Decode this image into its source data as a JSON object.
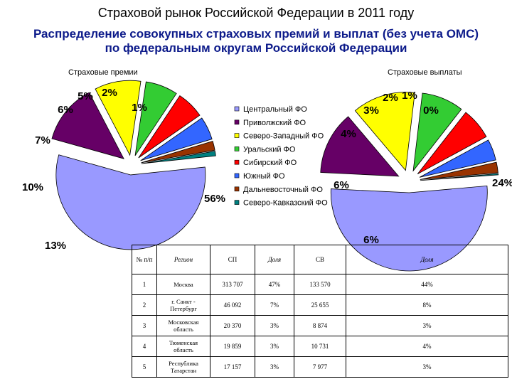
{
  "title": "Страховой рынок Российской Федерации в 2011 году",
  "subtitle_line1": "Распределение совокупных страховых премий и выплат (без учета ОМС)",
  "subtitle_line2": "по федеральным округам Российской Федерации",
  "chart_data": [
    {
      "type": "pie",
      "title": "Страховые премии",
      "categories": [
        "Центральный ФО",
        "Приволжский ФО",
        "Северо-Западный ФО",
        "Уральский ФО",
        "Сибирский ФО",
        "Южный ФО",
        "Дальневосточный ФО",
        "Северо-Кавказский ФО"
      ],
      "values": [
        56,
        13,
        10,
        7,
        6,
        5,
        2,
        1
      ],
      "labels": [
        "56%",
        "13%",
        "10%",
        "7%",
        "6%",
        "5%",
        "2%",
        "1%"
      ]
    },
    {
      "type": "pie",
      "title": "Страховые выплаты",
      "categories": [
        "Центральный ФО",
        "Приволжский ФО",
        "Северо-Западный ФО",
        "Уральский ФО",
        "Сибирский ФО",
        "Южный ФО",
        "Дальневосточный ФО",
        "Северо-Кавказский ФО"
      ],
      "values": [
        24,
        6,
        6,
        4,
        3,
        2,
        1,
        0
      ],
      "labels": [
        "24%",
        "6%",
        "6%",
        "4%",
        "3%",
        "2%",
        "1%",
        "0%"
      ]
    }
  ],
  "legend": {
    "items": [
      "Центральный ФО",
      "Приволжский ФО",
      "Северо-Западный ФО",
      "Уральский ФО",
      "Сибирский ФО",
      "Южный ФО",
      "Дальневосточный ФО",
      "Северо-Кавказский ФО"
    ],
    "colors": [
      "#9999ff",
      "#660066",
      "#ffff00",
      "#33cc33",
      "#ff0000",
      "#3366ff",
      "#993300",
      "#008080"
    ]
  },
  "table": {
    "headers": [
      "№ п/п",
      "Регион",
      "СП",
      "Доля",
      "СВ",
      "Доля"
    ],
    "rows": [
      [
        "1",
        "Москва",
        "313 707",
        "47%",
        "133 570",
        "44%"
      ],
      [
        "2",
        "г. Санкт - Петербург",
        "46 092",
        "7%",
        "25 655",
        "8%"
      ],
      [
        "3",
        "Московская область",
        "20 370",
        "3%",
        "8 874",
        "3%"
      ],
      [
        "4",
        "Тюменская область",
        "19 859",
        "3%",
        "10 731",
        "4%"
      ],
      [
        "5",
        "Республика Татарстан",
        "17 157",
        "3%",
        "7 977",
        "3%"
      ]
    ]
  }
}
